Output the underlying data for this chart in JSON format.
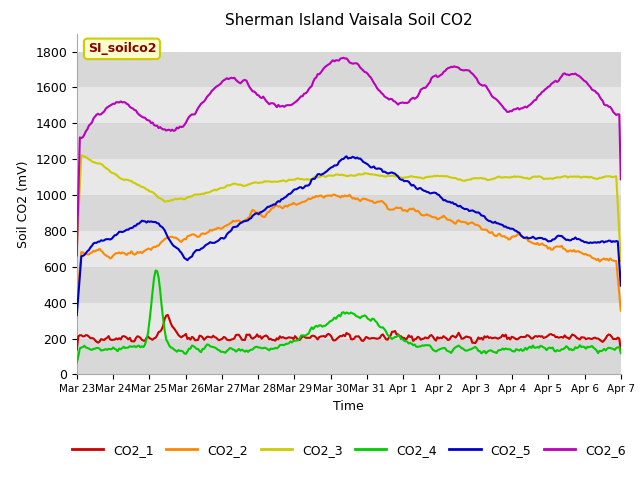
{
  "title": "Sherman Island Vaisala Soil CO2",
  "xlabel": "Time",
  "ylabel": "Soil CO2 (mV)",
  "annotation": "SI_soilco2",
  "ylim": [
    0,
    1900
  ],
  "yticks": [
    0,
    200,
    400,
    600,
    800,
    1000,
    1200,
    1400,
    1600,
    1800
  ],
  "colors": {
    "CO2_1": "#cc0000",
    "CO2_2": "#ff8800",
    "CO2_3": "#cccc00",
    "CO2_4": "#00cc00",
    "CO2_5": "#0000cc",
    "CO2_6": "#bb00bb"
  },
  "stripe_colors": [
    "#d8d8d8",
    "#e8e8e8"
  ],
  "n_points": 360,
  "x_start": 0,
  "x_end": 15,
  "xtick_positions": [
    0,
    1,
    2,
    3,
    4,
    5,
    6,
    7,
    8,
    9,
    10,
    11,
    12,
    13,
    14,
    15
  ],
  "xtick_labels": [
    "Mar 23",
    "Mar 24",
    "Mar 25",
    "Mar 26",
    "Mar 27",
    "Mar 28",
    "Mar 29",
    "Mar 30",
    "Mar 31",
    "Apr 1",
    "Apr 2",
    "Apr 3",
    "Apr 4",
    "Apr 5",
    "Apr 6",
    "Apr 7"
  ]
}
